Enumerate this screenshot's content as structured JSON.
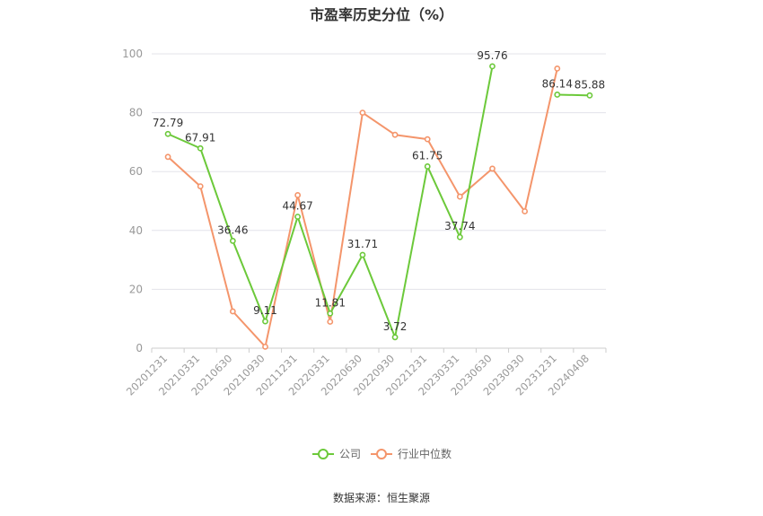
{
  "title": "市盈率历史分位（%）",
  "source": "数据来源：恒生聚源",
  "colors": {
    "company": "#6cc93a",
    "industry": "#f4956b",
    "grid": "#e3e3ea",
    "axis": "#cccccc"
  },
  "chart_data": {
    "type": "line",
    "ylim": [
      0,
      100
    ],
    "yticks": [
      0,
      20,
      40,
      60,
      80,
      100
    ],
    "categories": [
      "20201231",
      "20210331",
      "20210630",
      "20210930",
      "20211231",
      "20220331",
      "20220630",
      "20220930",
      "20221231",
      "20230331",
      "20230630",
      "20230930",
      "20231231",
      "20240408"
    ],
    "series": [
      {
        "name": "公司",
        "values": [
          72.79,
          67.91,
          36.46,
          9.11,
          44.67,
          11.81,
          31.71,
          3.72,
          61.75,
          37.74,
          95.76,
          null,
          86.14,
          85.88
        ],
        "labels": [
          "72.79",
          "67.91",
          "36.46",
          "9.11",
          "44.67",
          "11.81",
          "31.71",
          "3.72",
          "61.75",
          "37.74",
          "95.76",
          "",
          "86.14",
          "85.88"
        ]
      },
      {
        "name": "行业中位数",
        "values": [
          65,
          55,
          12.5,
          0.5,
          52,
          9,
          80,
          72.5,
          71,
          51.5,
          61,
          46.5,
          95,
          null
        ]
      }
    ],
    "legend": "bottom-center",
    "grid": true
  }
}
